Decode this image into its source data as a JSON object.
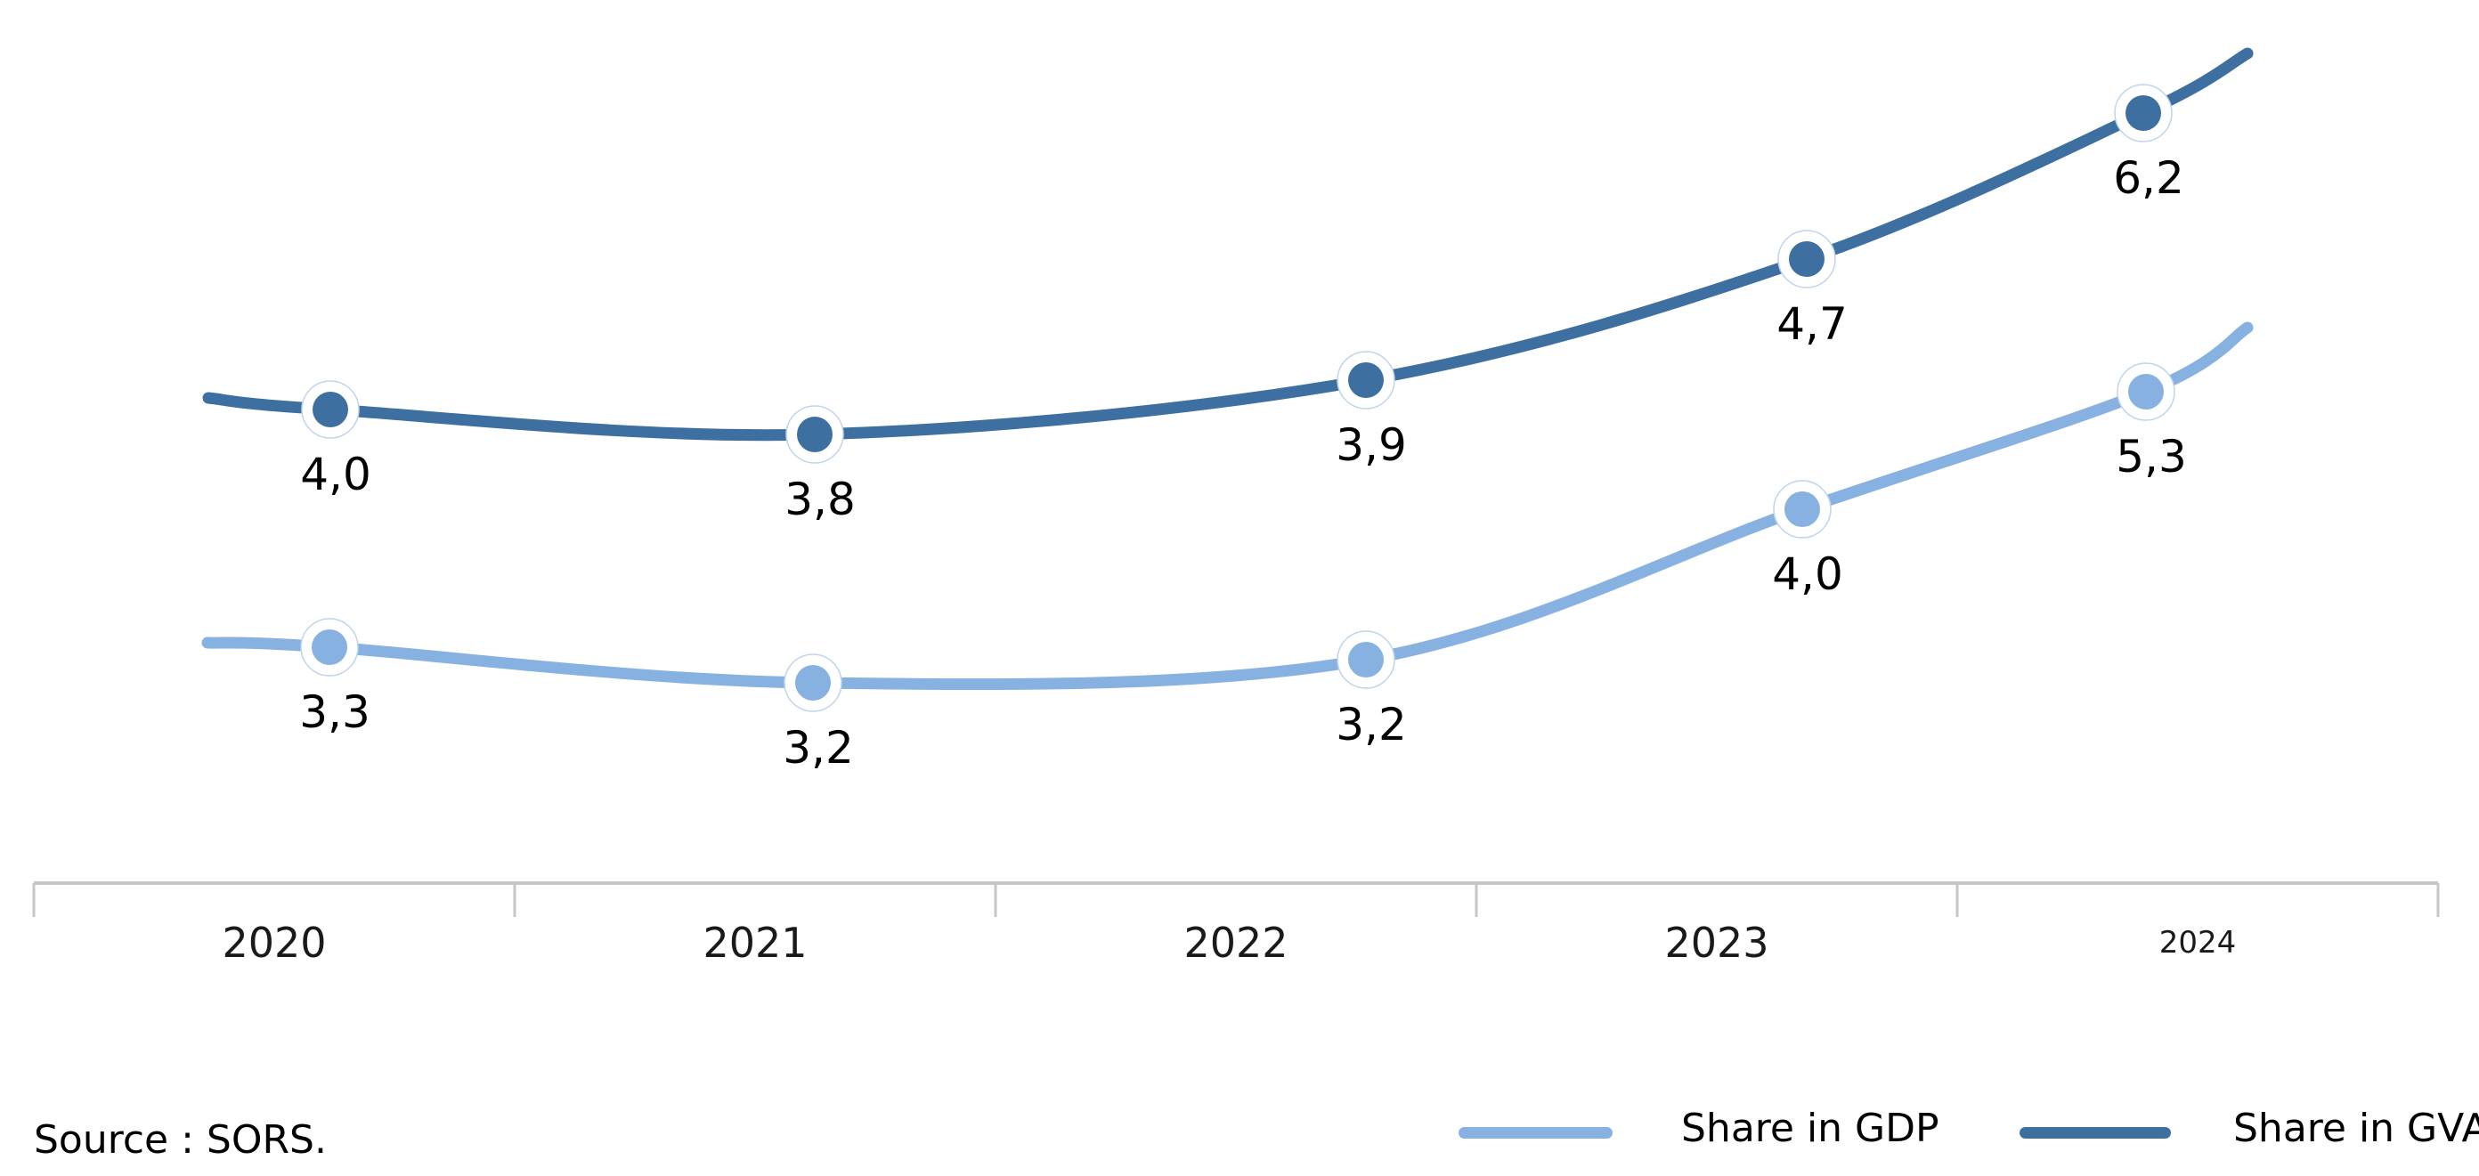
{
  "chart_data": {
    "type": "line",
    "title": "",
    "categories": [
      "2020",
      "2021",
      "2022",
      "2023",
      "2024"
    ],
    "series": [
      {
        "name": "Share in GDP",
        "color": "#87b1e0",
        "values": [
          3.3,
          3.2,
          3.2,
          4.0,
          5.3
        ],
        "point_labels": [
          "3,3",
          "3,2",
          "3,2",
          "4,0",
          "5,3"
        ]
      },
      {
        "name": "Share in GVA",
        "color": "#3d6fa1",
        "values": [
          4.0,
          3.8,
          3.9,
          4.7,
          6.2
        ],
        "point_labels": [
          "4,0",
          "3,8",
          "3,9",
          "4,7",
          "6,2"
        ]
      }
    ],
    "xlabel": "",
    "ylabel": "",
    "decimal_separator": ",",
    "y_axis_visible": false,
    "grid": false,
    "smooth": true,
    "marker_style": "filled-dot-with-white-ring",
    "legend_position": "bottom-right",
    "axis_color": "#c6c6c6",
    "source": "Source : SORS."
  }
}
